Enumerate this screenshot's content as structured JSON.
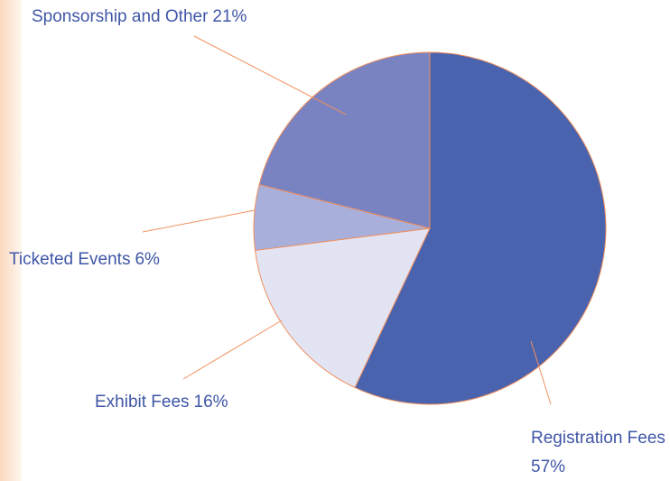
{
  "chart_data": {
    "type": "pie",
    "categories": [
      "Registration Fees",
      "Exhibit Fees",
      "Ticketed Events",
      "Sponsorship and Other"
    ],
    "values": [
      57,
      16,
      6,
      21
    ],
    "value_labels": [
      "57%",
      "16%",
      "6%",
      "21%"
    ],
    "colors": [
      "#4a63ae",
      "#e2e3f3",
      "#a9afdb",
      "#7a83c2"
    ],
    "edge_color": "#f0905e"
  }
}
